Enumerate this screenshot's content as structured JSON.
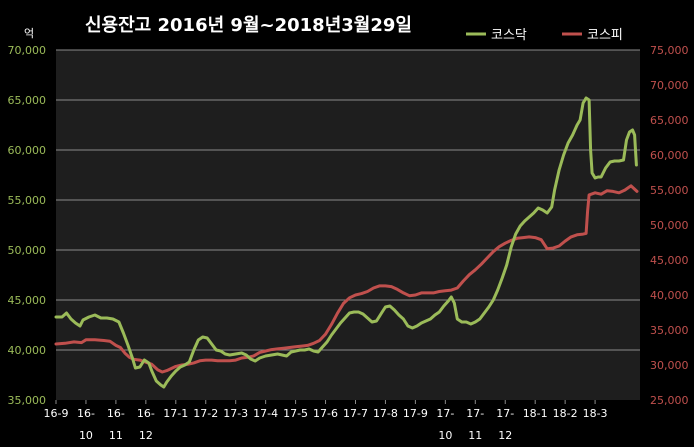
{
  "chart_data": {
    "type": "line",
    "title": "신용잔고 2016년 9월~2018년3월29일",
    "left_unit": "억",
    "colors": {
      "background": "#000000",
      "plot": "#1e1e1e",
      "grid": "#8a8a8a",
      "kosdaq": "#9bbb59",
      "kospi": "#c0504d",
      "axis_text": "#ffffff"
    },
    "legend_position": "top-right",
    "grid": true,
    "x_ticks": [
      "16-9",
      "16-10",
      "16-11",
      "16-12",
      "17-1",
      "17-2",
      "17-3",
      "17-4",
      "17-5",
      "17-6",
      "17-7",
      "17-8",
      "17-9",
      "17-10",
      "17-11",
      "17-12",
      "18-1",
      "18-2",
      "18-3"
    ],
    "xlim": [
      0,
      19.5
    ],
    "y_left": {
      "min": 35000,
      "max": 70000,
      "step": 5000,
      "ticks": [
        "35,000",
        "40,000",
        "45,000",
        "50,000",
        "55,000",
        "60,000",
        "65,000",
        "70,000"
      ]
    },
    "y_right": {
      "min": 25000,
      "max": 75000,
      "step": 5000,
      "ticks": [
        "25,000",
        "30,000",
        "35,000",
        "40,000",
        "45,000",
        "50,000",
        "55,000",
        "60,000",
        "65,000",
        "70,000",
        "75,000"
      ]
    },
    "series": [
      {
        "name": "코스닥",
        "axis": "left",
        "points": [
          [
            0,
            43300
          ],
          [
            0.2,
            43300
          ],
          [
            0.35,
            43700
          ],
          [
            0.5,
            43100
          ],
          [
            0.65,
            42700
          ],
          [
            0.8,
            42400
          ],
          [
            0.9,
            43000
          ],
          [
            1.1,
            43300
          ],
          [
            1.3,
            43500
          ],
          [
            1.5,
            43200
          ],
          [
            1.7,
            43200
          ],
          [
            1.9,
            43100
          ],
          [
            2.1,
            42800
          ],
          [
            2.25,
            41700
          ],
          [
            2.4,
            40500
          ],
          [
            2.55,
            39200
          ],
          [
            2.65,
            38200
          ],
          [
            2.8,
            38300
          ],
          [
            2.95,
            39000
          ],
          [
            3.1,
            38700
          ],
          [
            3.2,
            37900
          ],
          [
            3.35,
            36900
          ],
          [
            3.5,
            36500
          ],
          [
            3.6,
            36300
          ],
          [
            3.7,
            36800
          ],
          [
            3.85,
            37400
          ],
          [
            4.0,
            37900
          ],
          [
            4.15,
            38300
          ],
          [
            4.3,
            38500
          ],
          [
            4.45,
            38800
          ],
          [
            4.6,
            40000
          ],
          [
            4.75,
            41000
          ],
          [
            4.9,
            41300
          ],
          [
            5.05,
            41200
          ],
          [
            5.2,
            40600
          ],
          [
            5.35,
            40000
          ],
          [
            5.5,
            39900
          ],
          [
            5.65,
            39600
          ],
          [
            5.8,
            39500
          ],
          [
            6.0,
            39600
          ],
          [
            6.2,
            39700
          ],
          [
            6.35,
            39500
          ],
          [
            6.5,
            39100
          ],
          [
            6.65,
            38900
          ],
          [
            6.8,
            39200
          ],
          [
            7.0,
            39400
          ],
          [
            7.2,
            39500
          ],
          [
            7.4,
            39600
          ],
          [
            7.55,
            39500
          ],
          [
            7.7,
            39400
          ],
          [
            7.85,
            39800
          ],
          [
            8.0,
            39900
          ],
          [
            8.15,
            40000
          ],
          [
            8.3,
            40000
          ],
          [
            8.45,
            40100
          ],
          [
            8.6,
            39900
          ],
          [
            8.75,
            39800
          ],
          [
            8.9,
            40300
          ],
          [
            9.05,
            40800
          ],
          [
            9.2,
            41500
          ],
          [
            9.35,
            42100
          ],
          [
            9.5,
            42700
          ],
          [
            9.65,
            43200
          ],
          [
            9.8,
            43700
          ],
          [
            9.95,
            43800
          ],
          [
            10.1,
            43800
          ],
          [
            10.25,
            43600
          ],
          [
            10.4,
            43200
          ],
          [
            10.55,
            42800
          ],
          [
            10.7,
            42900
          ],
          [
            10.85,
            43600
          ],
          [
            11.0,
            44300
          ],
          [
            11.15,
            44400
          ],
          [
            11.3,
            44000
          ],
          [
            11.45,
            43500
          ],
          [
            11.6,
            43100
          ],
          [
            11.75,
            42400
          ],
          [
            11.9,
            42200
          ],
          [
            12.05,
            42400
          ],
          [
            12.2,
            42700
          ],
          [
            12.35,
            42900
          ],
          [
            12.5,
            43100
          ],
          [
            12.65,
            43500
          ],
          [
            12.8,
            43800
          ],
          [
            12.95,
            44400
          ],
          [
            13.1,
            44900
          ],
          [
            13.2,
            45300
          ],
          [
            13.3,
            44700
          ],
          [
            13.4,
            43100
          ],
          [
            13.55,
            42800
          ],
          [
            13.7,
            42800
          ],
          [
            13.85,
            42600
          ],
          [
            14.0,
            42800
          ],
          [
            14.15,
            43100
          ],
          [
            14.3,
            43700
          ],
          [
            14.45,
            44300
          ],
          [
            14.6,
            45000
          ],
          [
            14.75,
            46000
          ],
          [
            14.9,
            47200
          ],
          [
            15.05,
            48500
          ],
          [
            15.2,
            50300
          ],
          [
            15.35,
            51600
          ],
          [
            15.5,
            52400
          ],
          [
            15.65,
            52900
          ],
          [
            15.8,
            53300
          ],
          [
            15.95,
            53700
          ],
          [
            16.1,
            54200
          ],
          [
            16.25,
            54000
          ],
          [
            16.4,
            53700
          ],
          [
            16.55,
            54300
          ],
          [
            16.65,
            56000
          ],
          [
            16.8,
            58000
          ],
          [
            16.95,
            59500
          ],
          [
            17.1,
            60700
          ],
          [
            17.25,
            61500
          ],
          [
            17.4,
            62500
          ],
          [
            17.5,
            63000
          ],
          [
            17.6,
            64700
          ],
          [
            17.7,
            65200
          ],
          [
            17.8,
            65000
          ],
          [
            17.85,
            60000
          ],
          [
            17.9,
            57700
          ],
          [
            18.0,
            57200
          ],
          [
            18.1,
            57300
          ],
          [
            18.2,
            57300
          ],
          [
            18.35,
            58200
          ],
          [
            18.5,
            58800
          ],
          [
            18.65,
            58900
          ],
          [
            18.8,
            58900
          ],
          [
            18.95,
            59000
          ],
          [
            19.05,
            61000
          ],
          [
            19.15,
            61800
          ],
          [
            19.25,
            62000
          ],
          [
            19.32,
            61500
          ],
          [
            19.38,
            58500
          ]
        ]
      },
      {
        "name": "코스피",
        "axis": "right",
        "points": [
          [
            0,
            33000
          ],
          [
            0.3,
            33100
          ],
          [
            0.6,
            33300
          ],
          [
            0.85,
            33200
          ],
          [
            1.0,
            33600
          ],
          [
            1.3,
            33600
          ],
          [
            1.6,
            33500
          ],
          [
            1.8,
            33400
          ],
          [
            2.0,
            32800
          ],
          [
            2.15,
            32500
          ],
          [
            2.3,
            31700
          ],
          [
            2.45,
            31100
          ],
          [
            2.6,
            30800
          ],
          [
            2.8,
            30700
          ],
          [
            3.0,
            30400
          ],
          [
            3.2,
            30100
          ],
          [
            3.4,
            29300
          ],
          [
            3.55,
            29000
          ],
          [
            3.7,
            29200
          ],
          [
            3.85,
            29500
          ],
          [
            4.0,
            29800
          ],
          [
            4.2,
            30000
          ],
          [
            4.4,
            30100
          ],
          [
            4.6,
            30300
          ],
          [
            4.8,
            30600
          ],
          [
            5.0,
            30700
          ],
          [
            5.2,
            30700
          ],
          [
            5.4,
            30600
          ],
          [
            5.6,
            30600
          ],
          [
            5.8,
            30600
          ],
          [
            6.0,
            30700
          ],
          [
            6.2,
            31000
          ],
          [
            6.4,
            31100
          ],
          [
            6.6,
            31300
          ],
          [
            6.8,
            31800
          ],
          [
            7.0,
            32000
          ],
          [
            7.2,
            32200
          ],
          [
            7.4,
            32300
          ],
          [
            7.6,
            32400
          ],
          [
            7.8,
            32500
          ],
          [
            8.0,
            32600
          ],
          [
            8.2,
            32700
          ],
          [
            8.4,
            32800
          ],
          [
            8.6,
            33100
          ],
          [
            8.8,
            33500
          ],
          [
            9.0,
            34400
          ],
          [
            9.2,
            35800
          ],
          [
            9.4,
            37400
          ],
          [
            9.6,
            38800
          ],
          [
            9.8,
            39600
          ],
          [
            10.0,
            40000
          ],
          [
            10.2,
            40200
          ],
          [
            10.4,
            40500
          ],
          [
            10.6,
            41000
          ],
          [
            10.8,
            41300
          ],
          [
            11.0,
            41300
          ],
          [
            11.2,
            41200
          ],
          [
            11.4,
            40800
          ],
          [
            11.6,
            40300
          ],
          [
            11.8,
            39900
          ],
          [
            12.0,
            40000
          ],
          [
            12.2,
            40300
          ],
          [
            12.4,
            40300
          ],
          [
            12.6,
            40300
          ],
          [
            12.8,
            40500
          ],
          [
            13.0,
            40600
          ],
          [
            13.2,
            40700
          ],
          [
            13.4,
            41000
          ],
          [
            13.6,
            42000
          ],
          [
            13.8,
            42900
          ],
          [
            14.0,
            43600
          ],
          [
            14.2,
            44400
          ],
          [
            14.4,
            45300
          ],
          [
            14.6,
            46200
          ],
          [
            14.8,
            46900
          ],
          [
            15.0,
            47400
          ],
          [
            15.2,
            47800
          ],
          [
            15.4,
            48100
          ],
          [
            15.6,
            48200
          ],
          [
            15.8,
            48300
          ],
          [
            16.0,
            48200
          ],
          [
            16.2,
            47900
          ],
          [
            16.4,
            46600
          ],
          [
            16.6,
            46700
          ],
          [
            16.8,
            47000
          ],
          [
            17.0,
            47700
          ],
          [
            17.2,
            48300
          ],
          [
            17.4,
            48600
          ],
          [
            17.6,
            48700
          ],
          [
            17.7,
            48800
          ],
          [
            17.75,
            52000
          ],
          [
            17.8,
            54300
          ],
          [
            18.0,
            54600
          ],
          [
            18.2,
            54400
          ],
          [
            18.4,
            54900
          ],
          [
            18.6,
            54800
          ],
          [
            18.8,
            54600
          ],
          [
            19.0,
            55000
          ],
          [
            19.1,
            55300
          ],
          [
            19.2,
            55600
          ],
          [
            19.3,
            55200
          ],
          [
            19.4,
            54800
          ]
        ]
      }
    ]
  }
}
